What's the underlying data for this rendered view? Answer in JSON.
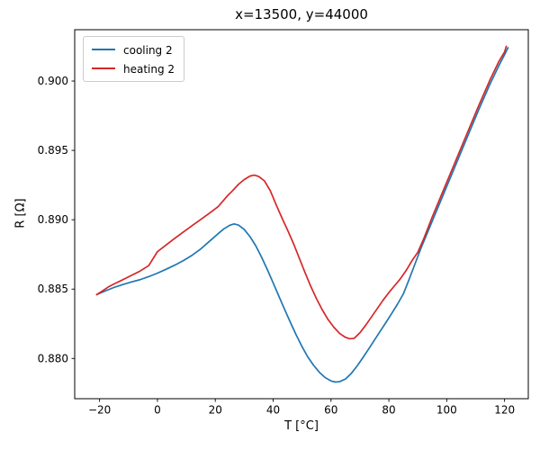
{
  "chart_data": {
    "type": "line",
    "title": "x=13500, y=44000",
    "xlabel": "T [°C]",
    "ylabel": "R [Ω]",
    "grid": false,
    "legend_position": "upper left",
    "xlim": [
      -28.6,
      128.2
    ],
    "ylim": [
      0.8771,
      0.9037
    ],
    "xticks": [
      {
        "label": "−20",
        "value": -20
      },
      {
        "label": "0",
        "value": 0
      },
      {
        "label": "20",
        "value": 20
      },
      {
        "label": "40",
        "value": 40
      },
      {
        "label": "60",
        "value": 60
      },
      {
        "label": "80",
        "value": 80
      },
      {
        "label": "100",
        "value": 100
      },
      {
        "label": "120",
        "value": 120
      }
    ],
    "yticks": [
      {
        "label": "0.880",
        "value": 0.88
      },
      {
        "label": "0.885",
        "value": 0.885
      },
      {
        "label": "0.890",
        "value": 0.89
      },
      {
        "label": "0.895",
        "value": 0.895
      },
      {
        "label": "0.900",
        "value": 0.9
      }
    ],
    "series": [
      {
        "name": "cooling 2",
        "color": "#1f77b4",
        "points": [
          [
            -21,
            0.8846
          ],
          [
            -18,
            0.88487
          ],
          [
            -15,
            0.88512
          ],
          [
            -12,
            0.88533
          ],
          [
            -9,
            0.88551
          ],
          [
            -6,
            0.88568
          ],
          [
            -3,
            0.8859
          ],
          [
            0,
            0.88615
          ],
          [
            3,
            0.88643
          ],
          [
            6,
            0.88673
          ],
          [
            9,
            0.88706
          ],
          [
            12,
            0.88744
          ],
          [
            15,
            0.8879
          ],
          [
            18,
            0.88845
          ],
          [
            21,
            0.889
          ],
          [
            23,
            0.88935
          ],
          [
            25,
            0.8896
          ],
          [
            26.5,
            0.8897
          ],
          [
            28,
            0.88962
          ],
          [
            30,
            0.8893
          ],
          [
            32,
            0.88878
          ],
          [
            34,
            0.88812
          ],
          [
            36,
            0.8873
          ],
          [
            38,
            0.8864
          ],
          [
            40,
            0.88545
          ],
          [
            42,
            0.88448
          ],
          [
            44,
            0.88352
          ],
          [
            46,
            0.88258
          ],
          [
            48,
            0.88168
          ],
          [
            50,
            0.88085
          ],
          [
            52,
            0.8801
          ],
          [
            54,
            0.8795
          ],
          [
            56,
            0.879
          ],
          [
            58,
            0.87862
          ],
          [
            60,
            0.87838
          ],
          [
            61.5,
            0.8783
          ],
          [
            63,
            0.87833
          ],
          [
            65,
            0.87852
          ],
          [
            67,
            0.87892
          ],
          [
            69,
            0.87945
          ],
          [
            71,
            0.88005
          ],
          [
            73,
            0.88068
          ],
          [
            75,
            0.88132
          ],
          [
            77,
            0.88196
          ],
          [
            79,
            0.8826
          ],
          [
            81,
            0.88325
          ],
          [
            83,
            0.88392
          ],
          [
            85,
            0.88465
          ],
          [
            87,
            0.8857
          ],
          [
            89,
            0.8868
          ],
          [
            91,
            0.8879
          ],
          [
            95,
            0.8899
          ],
          [
            99,
            0.8919
          ],
          [
            103,
            0.8939
          ],
          [
            107,
            0.8959
          ],
          [
            111,
            0.8979
          ],
          [
            115,
            0.8998
          ],
          [
            118,
            0.9011
          ],
          [
            120,
            0.9019
          ],
          [
            121.2,
            0.9024
          ]
        ]
      },
      {
        "name": "heating 2",
        "color": "#d62728",
        "points": [
          [
            -21,
            0.8846
          ],
          [
            -19,
            0.88487
          ],
          [
            -17,
            0.88515
          ],
          [
            -15,
            0.88537
          ],
          [
            -13,
            0.88557
          ],
          [
            -11,
            0.88578
          ],
          [
            -9,
            0.88599
          ],
          [
            -6,
            0.8863
          ],
          [
            -3,
            0.8867
          ],
          [
            0,
            0.8877
          ],
          [
            3,
            0.88818
          ],
          [
            6,
            0.88866
          ],
          [
            9,
            0.88912
          ],
          [
            12,
            0.88958
          ],
          [
            15,
            0.89002
          ],
          [
            18,
            0.89048
          ],
          [
            21,
            0.89095
          ],
          [
            24,
            0.89168
          ],
          [
            26,
            0.8921
          ],
          [
            28,
            0.89255
          ],
          [
            30,
            0.8929
          ],
          [
            32,
            0.89315
          ],
          [
            33.5,
            0.89322
          ],
          [
            35,
            0.89312
          ],
          [
            37,
            0.8928
          ],
          [
            39,
            0.8921
          ],
          [
            41,
            0.8911
          ],
          [
            43,
            0.89015
          ],
          [
            45,
            0.88925
          ],
          [
            47,
            0.8883
          ],
          [
            49,
            0.88725
          ],
          [
            51,
            0.8862
          ],
          [
            53,
            0.8852
          ],
          [
            55,
            0.8843
          ],
          [
            57,
            0.8835
          ],
          [
            59,
            0.8828
          ],
          [
            61,
            0.88225
          ],
          [
            63,
            0.8818
          ],
          [
            65,
            0.88152
          ],
          [
            66.5,
            0.88142
          ],
          [
            68,
            0.88145
          ],
          [
            70,
            0.88185
          ],
          [
            72,
            0.8824
          ],
          [
            74,
            0.883
          ],
          [
            76,
            0.8836
          ],
          [
            78,
            0.8842
          ],
          [
            80,
            0.88475
          ],
          [
            82,
            0.88525
          ],
          [
            84,
            0.88575
          ],
          [
            86,
            0.88635
          ],
          [
            88,
            0.88705
          ],
          [
            90,
            0.88765
          ],
          [
            92,
            0.8886
          ],
          [
            95,
            0.8902
          ],
          [
            99,
            0.8922
          ],
          [
            103,
            0.8942
          ],
          [
            107,
            0.8962
          ],
          [
            111,
            0.8982
          ],
          [
            115,
            0.9001
          ],
          [
            118,
            0.9014
          ],
          [
            120,
            0.9021
          ],
          [
            120.6,
            0.9025
          ]
        ]
      }
    ],
    "style": {
      "spine_color": "#000000",
      "tick_color": "#000000",
      "line_width": 1.7,
      "background": "#ffffff"
    }
  }
}
